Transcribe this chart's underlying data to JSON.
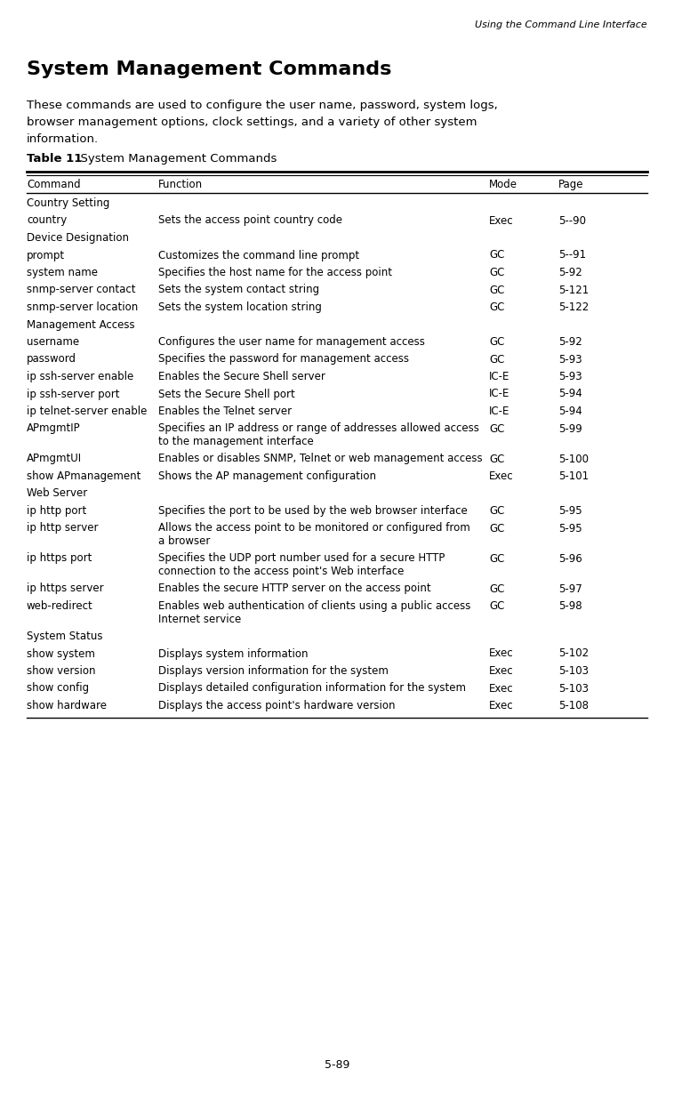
{
  "header_right": "Using the Command Line Interface",
  "page_title": "System Management Commands",
  "page_subtitle": "These commands are used to configure the user name, password, system logs,\nbrowser management options, clock settings, and a variety of other system\ninformation.",
  "table_label_bold": "Table 11",
  "table_label_normal": "  System Management Commands",
  "col_headers": [
    "Command",
    "Function",
    "Mode",
    "Page"
  ],
  "rows": [
    {
      "cmd": "Country Setting",
      "func": "",
      "mode": "",
      "page": "",
      "section": true
    },
    {
      "cmd": "country",
      "func": "Sets the access point country code",
      "mode": "Exec",
      "page": "5--90",
      "section": false,
      "multiline": false
    },
    {
      "cmd": "Device Designation",
      "func": "",
      "mode": "",
      "page": "",
      "section": true
    },
    {
      "cmd": "prompt",
      "func": "Customizes the command line prompt",
      "mode": "GC",
      "page": "5--91",
      "section": false,
      "multiline": false
    },
    {
      "cmd": "system name",
      "func": "Specifies the host name for the access point",
      "mode": "GC",
      "page": "5-92",
      "section": false,
      "multiline": false
    },
    {
      "cmd": "snmp-server contact",
      "func": "Sets the system contact string",
      "mode": "GC",
      "page": "5-121",
      "section": false,
      "multiline": false
    },
    {
      "cmd": "snmp-server location",
      "func": "Sets the system location string",
      "mode": "GC",
      "page": "5-122",
      "section": false,
      "multiline": false
    },
    {
      "cmd": "Management Access",
      "func": "",
      "mode": "",
      "page": "",
      "section": true
    },
    {
      "cmd": "username",
      "func": "Configures the user name for management access",
      "mode": "GC",
      "page": "5-92",
      "section": false,
      "multiline": false
    },
    {
      "cmd": "password",
      "func": "Specifies the password for management access",
      "mode": "GC",
      "page": "5-93",
      "section": false,
      "multiline": false
    },
    {
      "cmd": "ip ssh-server enable",
      "func": "Enables the Secure Shell server",
      "mode": "IC-E",
      "page": "5-93",
      "section": false,
      "multiline": false
    },
    {
      "cmd": "ip ssh-server port",
      "func": "Sets the Secure Shell port",
      "mode": "IC-E",
      "page": "5-94",
      "section": false,
      "multiline": false
    },
    {
      "cmd": "ip telnet-server enable",
      "func": "Enables the Telnet server",
      "mode": "IC-E",
      "page": "5-94",
      "section": false,
      "multiline": false
    },
    {
      "cmd": "APmgmtIP",
      "func": "Specifies an IP address or range of addresses allowed access\nto the management interface",
      "mode": "GC",
      "page": "5-99",
      "section": false,
      "multiline": true
    },
    {
      "cmd": "APmgmtUI",
      "func": "Enables or disables SNMP, Telnet or web management access",
      "mode": "GC",
      "page": "5-100",
      "section": false,
      "multiline": false
    },
    {
      "cmd": "show APmanagement",
      "func": "Shows the AP management configuration",
      "mode": "Exec",
      "page": "5-101",
      "section": false,
      "multiline": false
    },
    {
      "cmd": "Web Server",
      "func": "",
      "mode": "",
      "page": "",
      "section": true
    },
    {
      "cmd": "ip http port",
      "func": "Specifies the port to be used by the web browser interface",
      "mode": "GC",
      "page": "5-95",
      "section": false,
      "multiline": false
    },
    {
      "cmd": "ip http server",
      "func": "Allows the access point to be monitored or configured from\na browser",
      "mode": "GC",
      "page": "5-95",
      "section": false,
      "multiline": true
    },
    {
      "cmd": "ip https port",
      "func": "Specifies the UDP port number used for a secure HTTP\nconnection to the access point's Web interface",
      "mode": "GC",
      "page": "5-96",
      "section": false,
      "multiline": true
    },
    {
      "cmd": "ip https server",
      "func": "Enables the secure HTTP server on the access point",
      "mode": "GC",
      "page": "5-97",
      "section": false,
      "multiline": false
    },
    {
      "cmd": "web-redirect",
      "func": "Enables web authentication of clients using a public access\nInternet service",
      "mode": "GC",
      "page": "5-98",
      "section": false,
      "multiline": true
    },
    {
      "cmd": "System Status",
      "func": "",
      "mode": "",
      "page": "",
      "section": true
    },
    {
      "cmd": "show system",
      "func": "Displays system information",
      "mode": "Exec",
      "page": "5-102",
      "section": false,
      "multiline": false
    },
    {
      "cmd": "show version",
      "func": "Displays version information for the system",
      "mode": "Exec",
      "page": "5-103",
      "section": false,
      "multiline": false
    },
    {
      "cmd": "show config",
      "func": "Displays detailed configuration information for the system",
      "mode": "Exec",
      "page": "5-103",
      "section": false,
      "multiline": false
    },
    {
      "cmd": "show hardware",
      "func": "Displays the access point's hardware version",
      "mode": "Exec",
      "page": "5-108",
      "section": false,
      "multiline": false
    }
  ],
  "footer_text": "5-89",
  "bg_color": "#ffffff",
  "text_color": "#000000"
}
